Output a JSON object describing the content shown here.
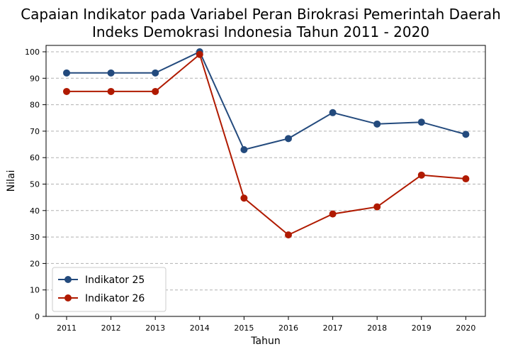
{
  "chart_data": {
    "type": "line",
    "title_line1": "Capaian Indikator pada Variabel Peran Birokrasi Pemerintah Daerah",
    "title_line2": "Indeks Demokrasi Indonesia Tahun 2011 - 2020",
    "xlabel": "Tahun",
    "ylabel": "Nilai",
    "x": [
      "2011",
      "2012",
      "2013",
      "2014",
      "2015",
      "2016",
      "2017",
      "2018",
      "2019",
      "2020"
    ],
    "yticks": [
      "0",
      "10",
      "20",
      "30",
      "40",
      "50",
      "60",
      "70",
      "80",
      "90",
      "100"
    ],
    "ylim": [
      0,
      100
    ],
    "grid": "y-dashed",
    "legend_position": "lower-left",
    "series": [
      {
        "name": "Indikator 25",
        "color": "#234a7d",
        "values": [
          92,
          92,
          92,
          100,
          63,
          67.2,
          77,
          72.7,
          73.4,
          68.8
        ]
      },
      {
        "name": "Indikator 26",
        "color": "#b01a00",
        "values": [
          85,
          85,
          85,
          99,
          44.7,
          30.8,
          38.7,
          41.4,
          53.4,
          52
        ]
      }
    ]
  }
}
